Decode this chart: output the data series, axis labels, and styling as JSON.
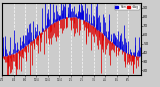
{
  "background_color": "#cccccc",
  "plot_bg": "#cccccc",
  "ylim": [
    15,
    95
  ],
  "yticks": [
    20,
    30,
    40,
    50,
    60,
    70,
    80,
    90
  ],
  "n_points": 365,
  "blue_color": "#0000dd",
  "red_color": "#dd0000",
  "grid_color": "#ffffff",
  "seed": 42,
  "amplitude": 22,
  "baseline": 58,
  "noise_scale": 14,
  "phase": 0.0,
  "n_months": 12
}
